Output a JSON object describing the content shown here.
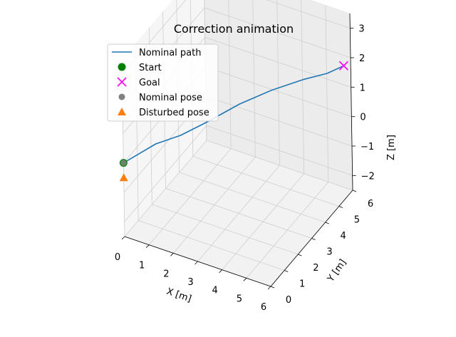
{
  "chart_data": {
    "type": "line",
    "projection": "3d",
    "title": "Correction animation",
    "xlabel": "X [m]",
    "ylabel": "Y [m]",
    "zlabel": "Z [m]",
    "xlim": [
      0,
      6
    ],
    "ylim": [
      0,
      6
    ],
    "zlim": [
      -2.5,
      3.5
    ],
    "xticks": [
      "0",
      "1",
      "2",
      "3",
      "4",
      "5",
      "6"
    ],
    "yticks": [
      "0",
      "1",
      "2",
      "3",
      "4",
      "5",
      "6"
    ],
    "zticks": [
      "−2",
      "−1",
      "0",
      "1",
      "2",
      "3"
    ],
    "grid": true,
    "legend_position": "top-left",
    "colors": {
      "nominal_path": "#1f77b4",
      "start": "#008000",
      "goal": "#ff00ff",
      "nominal_pose": "#808080",
      "disturbed_pose": "#ff7f0e"
    },
    "series": [
      {
        "name": "Nominal path",
        "kind": "line",
        "points": [
          {
            "x": 0.0,
            "y": 0.0,
            "z": 0.0
          },
          {
            "x": 0.5,
            "y": 0.3,
            "z": 0.3
          },
          {
            "x": 1.0,
            "y": 0.6,
            "z": 0.6
          },
          {
            "x": 1.8,
            "y": 1.0,
            "z": 0.9
          },
          {
            "x": 2.6,
            "y": 1.5,
            "z": 1.3
          },
          {
            "x": 3.4,
            "y": 2.5,
            "z": 1.6
          },
          {
            "x": 4.2,
            "y": 3.4,
            "z": 1.8
          },
          {
            "x": 5.0,
            "y": 4.3,
            "z": 1.9
          },
          {
            "x": 5.6,
            "y": 5.0,
            "z": 1.9
          },
          {
            "x": 6.0,
            "y": 5.5,
            "z": 2.0
          }
        ]
      },
      {
        "name": "Start",
        "kind": "marker",
        "marker": "circle",
        "points": [
          {
            "x": 0.0,
            "y": 0.0,
            "z": 0.0
          }
        ]
      },
      {
        "name": "Goal",
        "kind": "marker",
        "marker": "x",
        "points": [
          {
            "x": 6.0,
            "y": 5.5,
            "z": 2.0
          }
        ]
      },
      {
        "name": "Nominal pose",
        "kind": "marker",
        "marker": "circle",
        "points": [
          {
            "x": 0.0,
            "y": 0.0,
            "z": 0.0
          }
        ]
      },
      {
        "name": "Disturbed pose",
        "kind": "marker",
        "marker": "triangle",
        "points": [
          {
            "x": 0.0,
            "y": 0.0,
            "z": -0.5
          }
        ]
      }
    ]
  }
}
